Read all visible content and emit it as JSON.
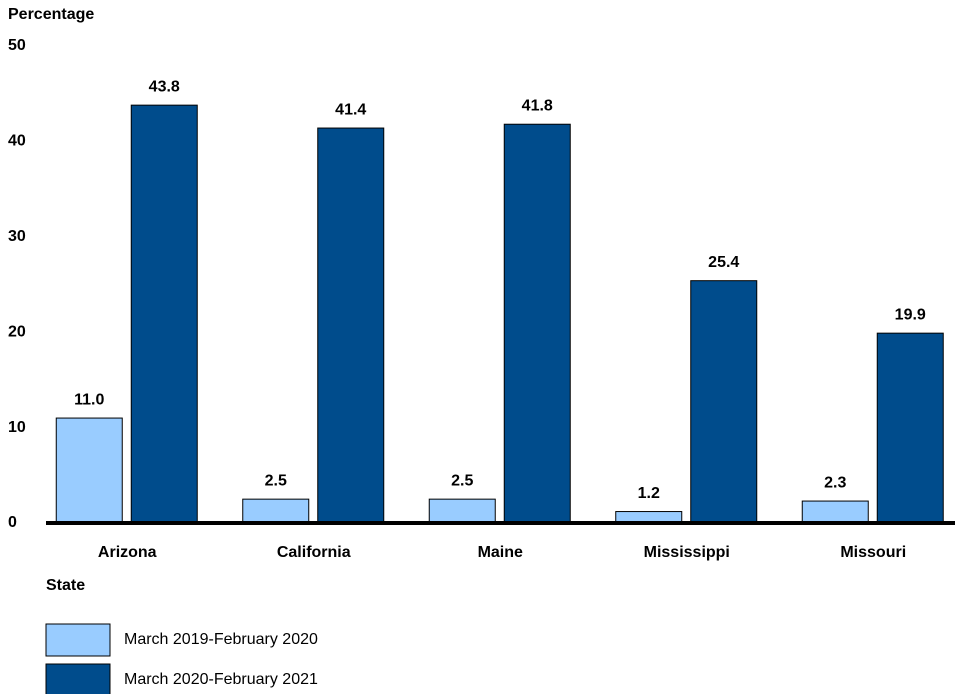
{
  "chart_data": {
    "type": "bar",
    "y_label": "Percentage",
    "x_label": "State",
    "categories": [
      "Arizona",
      "California",
      "Maine",
      "Mississippi",
      "Missouri"
    ],
    "series": [
      {
        "name": "March 2019-February 2020",
        "color": "#99ccff",
        "values": [
          11.0,
          2.5,
          2.5,
          1.2,
          2.3
        ],
        "value_labels": [
          "11.0",
          "2.5",
          "2.5",
          "1.2",
          "2.3"
        ]
      },
      {
        "name": "March 2020-February 2021",
        "color": "#004c8c",
        "values": [
          43.8,
          41.4,
          41.8,
          25.4,
          19.9
        ],
        "value_labels": [
          "43.8",
          "41.4",
          "41.8",
          "25.4",
          "19.9"
        ]
      }
    ],
    "ylim": [
      0,
      50
    ],
    "yticks": [
      0,
      10,
      20,
      30,
      40,
      50
    ],
    "grid": false
  }
}
